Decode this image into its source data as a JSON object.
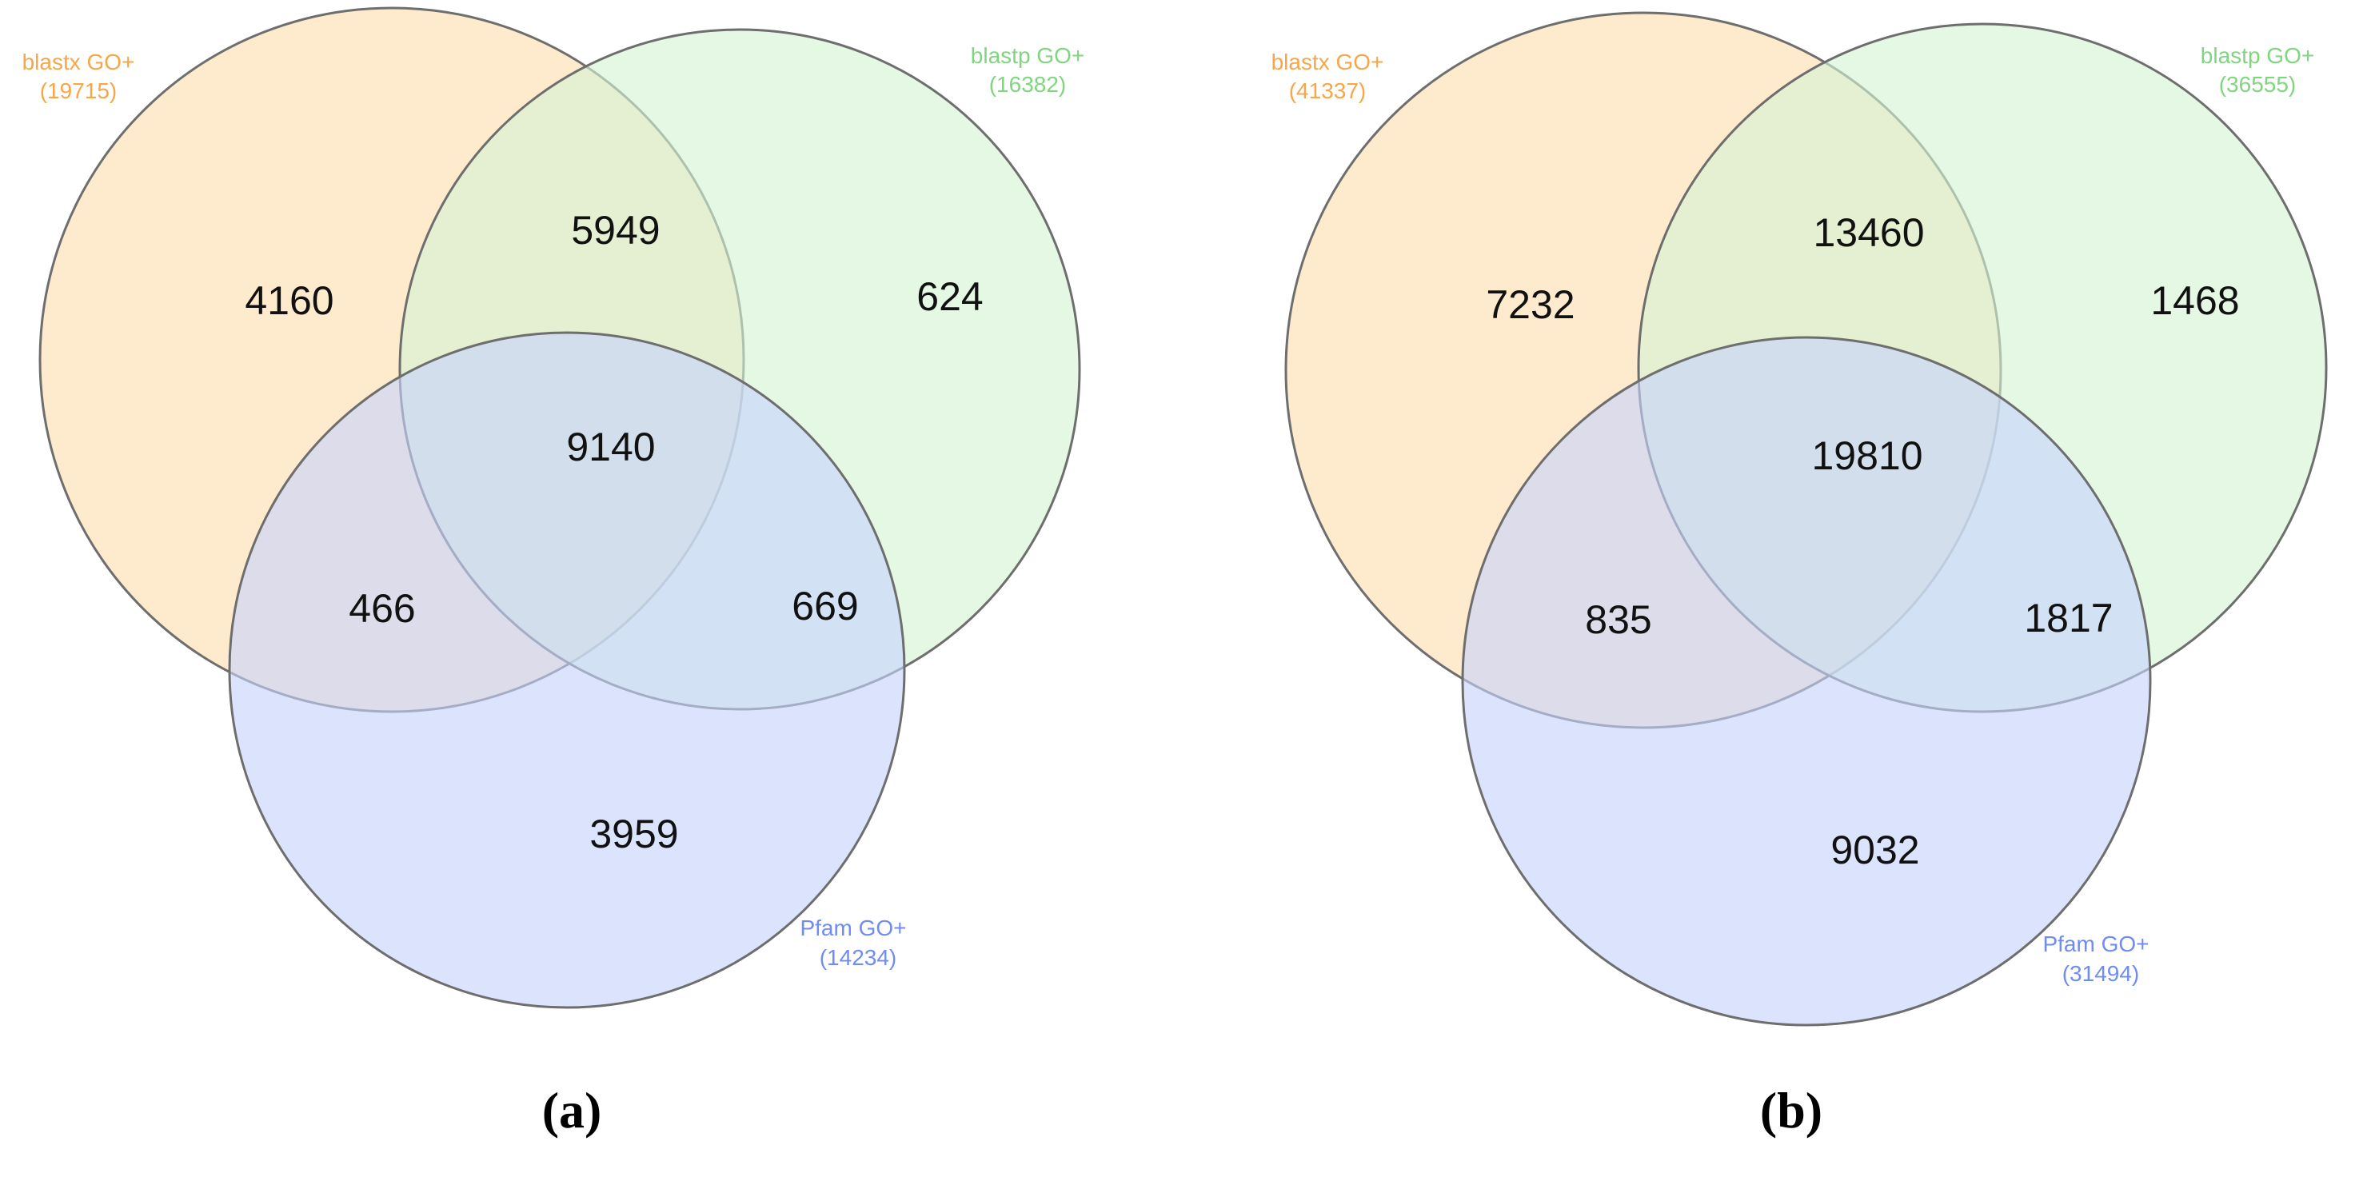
{
  "colors": {
    "blastx": "#F7A64A",
    "blastp": "#7FD67F",
    "pfam": "#6F8CF5",
    "blastx_fill": "#FDDDAE",
    "blastp_fill": "#D3F3D3",
    "pfam_fill": "#C6D4FB",
    "outline": "#6E6E6E"
  },
  "panels": [
    {
      "caption": "(a)",
      "sets": {
        "blastx": {
          "name": "blastx GO+",
          "total": "(19715)"
        },
        "blastp": {
          "name": "blastp GO+",
          "total": "(16382)"
        },
        "pfam": {
          "name": "Pfam GO+",
          "total": "(14234)"
        }
      },
      "regions": {
        "blastx_only": "4160",
        "blastx_blastp": "5949",
        "blastp_only": "624",
        "all_three": "9140",
        "blastx_pfam": "466",
        "blastp_pfam": "669",
        "pfam_only": "3959"
      }
    },
    {
      "caption": "(b)",
      "sets": {
        "blastx": {
          "name": "blastx GO+",
          "total": "(41337)"
        },
        "blastp": {
          "name": "blastp GO+",
          "total": "(36555)"
        },
        "pfam": {
          "name": "Pfam GO+",
          "total": "(31494)"
        }
      },
      "regions": {
        "blastx_only": "7232",
        "blastx_blastp": "13460",
        "blastp_only": "1468",
        "all_three": "19810",
        "blastx_pfam": "835",
        "blastp_pfam": "1817",
        "pfam_only": "9032"
      }
    }
  ]
}
